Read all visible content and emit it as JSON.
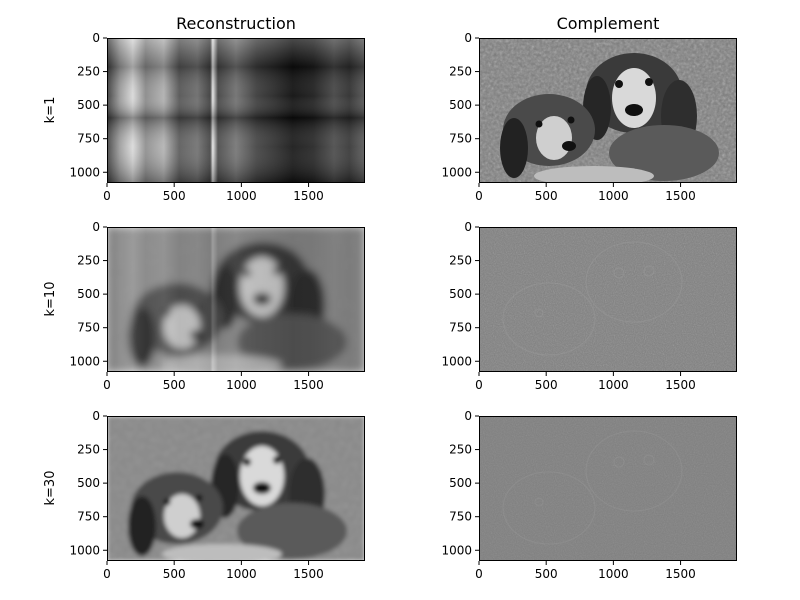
{
  "figure": {
    "columns": [
      {
        "title": "Reconstruction"
      },
      {
        "title": "Complement"
      }
    ]
  },
  "chart_data": {
    "type": "image-grid",
    "xticks": [
      0,
      500,
      1000,
      1500
    ],
    "yticks": [
      0,
      250,
      500,
      750,
      1000
    ],
    "image_width": 1920,
    "image_height": 1080,
    "xlim": [
      0,
      1920
    ],
    "ylim": [
      1080,
      0
    ],
    "rows": [
      {
        "label": "k=1",
        "k": 1
      },
      {
        "label": "k=10",
        "k": 10
      },
      {
        "label": "k=30",
        "k": 30
      }
    ],
    "panels": [
      {
        "row": 0,
        "col": 0,
        "content": "rank-1 reconstruction (banded)"
      },
      {
        "row": 0,
        "col": 1,
        "content": "complement (near-original photo)"
      },
      {
        "row": 1,
        "col": 0,
        "content": "rank-10 reconstruction (blocky)"
      },
      {
        "row": 1,
        "col": 1,
        "content": "complement (edge residual)"
      },
      {
        "row": 2,
        "col": 0,
        "content": "rank-30 reconstruction (clear)"
      },
      {
        "row": 2,
        "col": 1,
        "content": "complement (fine residual)"
      }
    ]
  }
}
